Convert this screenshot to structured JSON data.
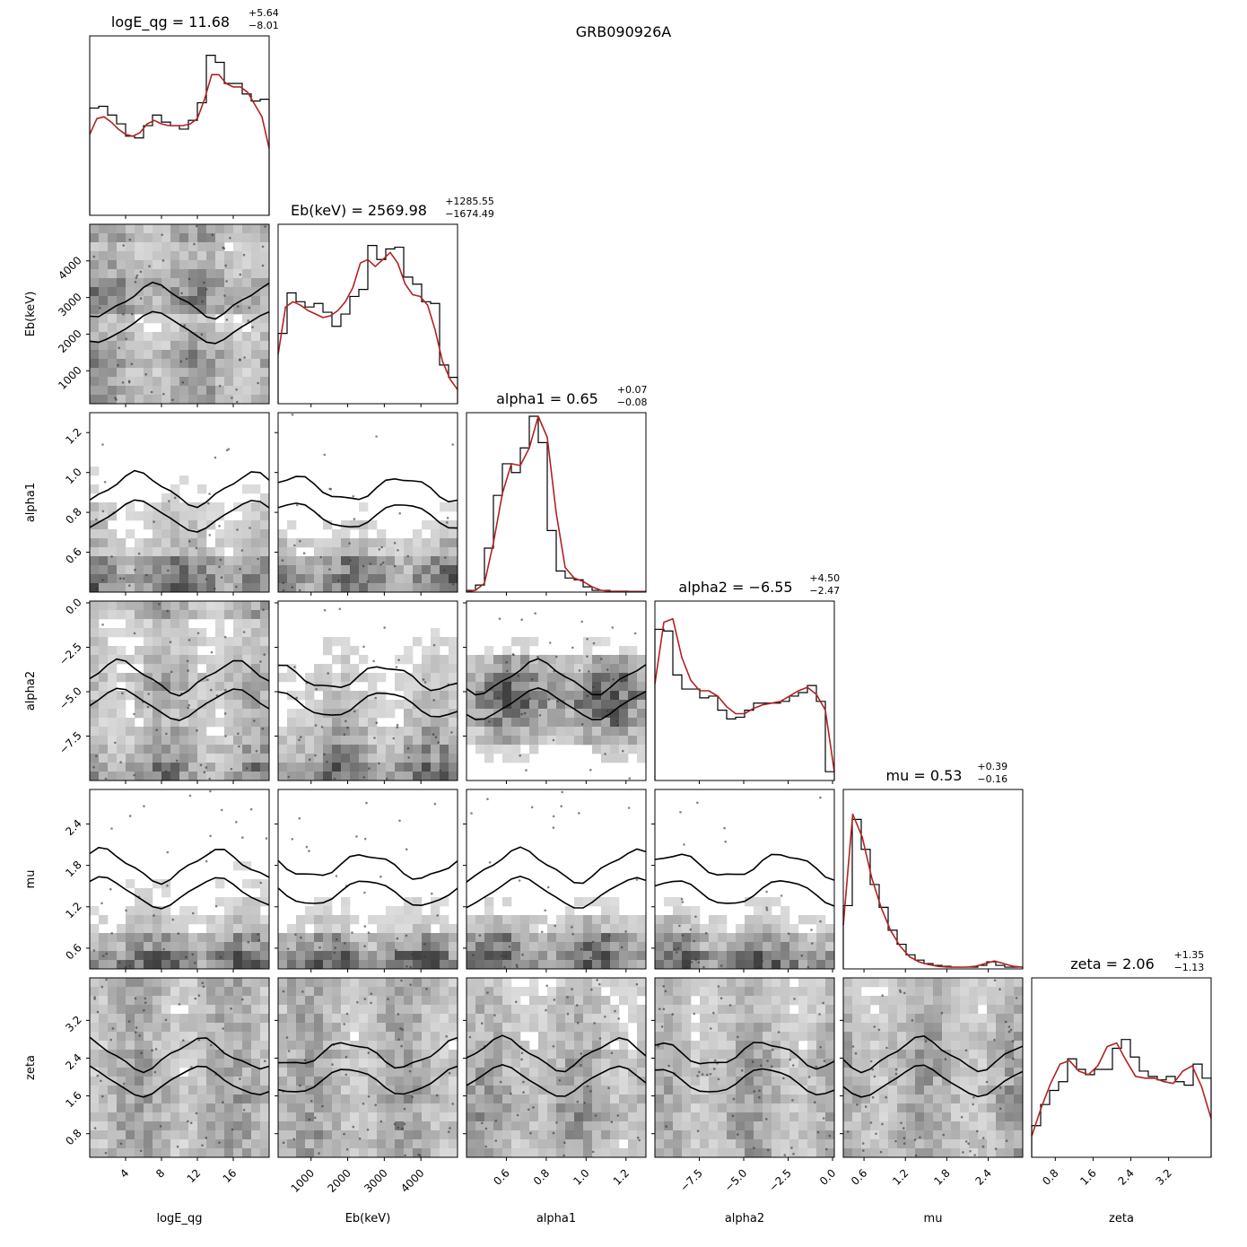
{
  "figure_title": "GRB090926A",
  "chart_data": {
    "type": "corner",
    "title": "GRB090926A",
    "colors": {
      "kde": "#b22222",
      "hist": "#000000",
      "contour": "#000000",
      "density": "#000000"
    },
    "parameters": [
      {
        "key": "logE_qg",
        "label": "logE_qg",
        "median": "11.68",
        "plus": "+5.64",
        "minus": "−8.01",
        "range": [
          0,
          20
        ],
        "ticks": [
          4,
          8,
          12,
          16
        ],
        "tick_labels": [
          "4",
          "8",
          "12",
          "16"
        ]
      },
      {
        "key": "Eb",
        "label": "Eb(keV)",
        "median": "2569.98",
        "plus": "+1285.55",
        "minus": "−1674.49",
        "range": [
          100,
          5000
        ],
        "ticks": [
          1000,
          2000,
          3000,
          4000
        ],
        "tick_labels": [
          "1000",
          "2000",
          "3000",
          "4000"
        ]
      },
      {
        "key": "alpha1",
        "label": "alpha1",
        "median": "0.65",
        "plus": "+0.07",
        "minus": "−0.08",
        "range": [
          0.4,
          1.3
        ],
        "ticks": [
          0.6,
          0.8,
          1.0,
          1.2
        ],
        "tick_labels": [
          "0.6",
          "0.8",
          "1.0",
          "1.2"
        ]
      },
      {
        "key": "alpha2",
        "label": "alpha2",
        "median": "−6.55",
        "plus": "+4.50",
        "minus": "−2.47",
        "range": [
          -10,
          0.1
        ],
        "ticks": [
          -7.5,
          -5.0,
          -2.5,
          0.0
        ],
        "tick_labels": [
          "−7.5",
          "−5.0",
          "−2.5",
          "0.0"
        ]
      },
      {
        "key": "mu",
        "label": "mu",
        "median": "0.53",
        "plus": "+0.39",
        "minus": "−0.16",
        "range": [
          0.3,
          2.9
        ],
        "ticks": [
          0.6,
          1.2,
          1.8,
          2.4
        ],
        "tick_labels": [
          "0.6",
          "1.2",
          "1.8",
          "2.4"
        ]
      },
      {
        "key": "zeta",
        "label": "zeta",
        "median": "2.06",
        "plus": "+1.35",
        "minus": "−1.13",
        "range": [
          0.3,
          4.1
        ],
        "ticks": [
          0.8,
          1.6,
          2.4,
          3.2
        ],
        "tick_labels": [
          "0.8",
          "1.6",
          "2.4",
          "3.2"
        ]
      }
    ],
    "marginal_hist": [
      [
        0.61,
        0.62,
        0.57,
        0.52,
        0.45,
        0.44,
        0.51,
        0.57,
        0.53,
        0.51,
        0.49,
        0.54,
        0.64,
        0.91,
        0.87,
        0.75,
        0.75,
        0.69,
        0.65,
        0.66
      ],
      [
        0.4,
        0.63,
        0.58,
        0.55,
        0.57,
        0.52,
        0.44,
        0.51,
        0.61,
        0.65,
        0.9,
        0.82,
        0.88,
        0.89,
        0.72,
        0.68,
        0.58,
        0.57,
        0.22,
        0.15
      ],
      [
        0.01,
        0.04,
        0.25,
        0.55,
        0.73,
        0.68,
        0.82,
        1.0,
        0.85,
        0.35,
        0.12,
        0.08,
        0.07,
        0.03,
        0.01,
        0.01,
        0.005,
        0.005,
        0.004,
        0.004
      ],
      [
        0.86,
        0.85,
        0.6,
        0.52,
        0.52,
        0.47,
        0.48,
        0.4,
        0.35,
        0.36,
        0.4,
        0.44,
        0.44,
        0.44,
        0.45,
        0.48,
        0.5,
        0.54,
        0.45,
        0.05
      ],
      [
        0.36,
        0.85,
        0.68,
        0.48,
        0.35,
        0.22,
        0.14,
        0.08,
        0.05,
        0.03,
        0.02,
        0.015,
        0.01,
        0.01,
        0.01,
        0.02,
        0.04,
        0.02,
        0.01,
        0.01
      ],
      [
        0.18,
        0.3,
        0.38,
        0.43,
        0.56,
        0.5,
        0.47,
        0.5,
        0.5,
        0.62,
        0.67,
        0.57,
        0.49,
        0.46,
        0.44,
        0.46,
        0.43,
        0.41,
        0.53,
        0.45
      ]
    ],
    "marginal_kde": [
      [
        0.46,
        0.55,
        0.56,
        0.53,
        0.49,
        0.46,
        0.45,
        0.47,
        0.52,
        0.54,
        0.52,
        0.51,
        0.51,
        0.51,
        0.52,
        0.55,
        0.66,
        0.8,
        0.8,
        0.75,
        0.73,
        0.73,
        0.7,
        0.63,
        0.56,
        0.38
      ],
      [
        0.28,
        0.55,
        0.58,
        0.56,
        0.53,
        0.51,
        0.49,
        0.5,
        0.53,
        0.58,
        0.66,
        0.8,
        0.82,
        0.78,
        0.82,
        0.86,
        0.8,
        0.68,
        0.62,
        0.61,
        0.56,
        0.42,
        0.24,
        0.14,
        0.08
      ],
      [
        0.0,
        0.01,
        0.05,
        0.28,
        0.56,
        0.73,
        0.72,
        0.82,
        1.0,
        0.88,
        0.45,
        0.14,
        0.08,
        0.06,
        0.03,
        0.01,
        0.004,
        0.003,
        0.003,
        0.003,
        0.002
      ],
      [
        0.55,
        0.9,
        0.92,
        0.7,
        0.57,
        0.51,
        0.51,
        0.48,
        0.42,
        0.38,
        0.38,
        0.41,
        0.43,
        0.44,
        0.45,
        0.48,
        0.51,
        0.53,
        0.49,
        0.4,
        0.05
      ],
      [
        0.25,
        0.88,
        0.75,
        0.52,
        0.35,
        0.22,
        0.13,
        0.07,
        0.04,
        0.025,
        0.015,
        0.01,
        0.01,
        0.01,
        0.015,
        0.03,
        0.045,
        0.03,
        0.015,
        0.01
      ],
      [
        0.12,
        0.28,
        0.42,
        0.53,
        0.55,
        0.49,
        0.47,
        0.52,
        0.63,
        0.65,
        0.55,
        0.46,
        0.45,
        0.45,
        0.43,
        0.42,
        0.49,
        0.52,
        0.4,
        0.22
      ]
    ],
    "pair_density": {
      "1-0": [
        0.55,
        0.5,
        0.6,
        0.45,
        0.35,
        0.65,
        0.7,
        0.5,
        0.4,
        0.55
      ],
      "2-0": [
        0.85,
        0.7,
        0.4,
        0.35,
        0.3,
        0.2,
        0.15,
        0.1,
        0.05,
        0.05
      ],
      "3-0": [
        0.7,
        0.55,
        0.45,
        0.4,
        0.45,
        0.5,
        0.4,
        0.35,
        0.3,
        0.5
      ],
      "4-0": [
        0.9,
        0.6,
        0.35,
        0.25,
        0.2,
        0.15,
        0.1,
        0.1,
        0.08,
        0.08
      ],
      "5-0": [
        0.5,
        0.55,
        0.5,
        0.55,
        0.5,
        0.5,
        0.45,
        0.5,
        0.45,
        0.5
      ],
      "2-1": [
        0.9,
        0.7,
        0.4,
        0.25,
        0.15,
        0.1,
        0.05,
        0.05,
        0.04,
        0.03
      ],
      "3-1": [
        0.8,
        0.6,
        0.5,
        0.4,
        0.35,
        0.3,
        0.25,
        0.2,
        0.15,
        0.1
      ],
      "4-1": [
        0.9,
        0.6,
        0.3,
        0.2,
        0.15,
        0.1,
        0.08,
        0.07,
        0.06,
        0.06
      ],
      "5-1": [
        0.5,
        0.55,
        0.5,
        0.55,
        0.5,
        0.5,
        0.45,
        0.5,
        0.45,
        0.5
      ],
      "3-2": [
        0.1,
        0.25,
        0.5,
        0.75,
        0.9,
        0.8,
        0.5,
        0.2,
        0.08,
        0.05
      ],
      "4-2": [
        0.9,
        0.75,
        0.4,
        0.2,
        0.1,
        0.06,
        0.05,
        0.05,
        0.06,
        0.03
      ],
      "5-2": [
        0.45,
        0.55,
        0.6,
        0.55,
        0.5,
        0.5,
        0.45,
        0.4,
        0.4,
        0.35
      ],
      "4-3": [
        0.9,
        0.6,
        0.35,
        0.2,
        0.12,
        0.08,
        0.06,
        0.05,
        0.06,
        0.1
      ],
      "5-3": [
        0.5,
        0.55,
        0.5,
        0.5,
        0.5,
        0.5,
        0.45,
        0.45,
        0.4,
        0.4
      ],
      "5-4": [
        0.5,
        0.5,
        0.5,
        0.55,
        0.5,
        0.5,
        0.5,
        0.45,
        0.4,
        0.4
      ]
    }
  }
}
